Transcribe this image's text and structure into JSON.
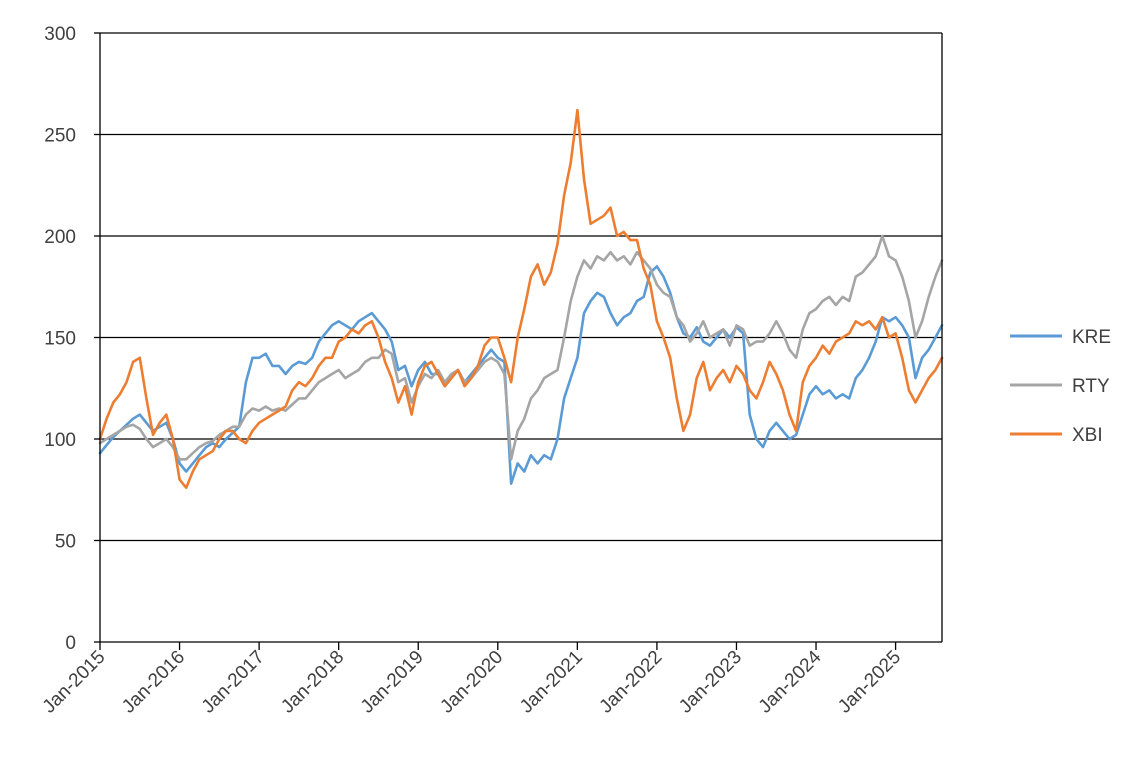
{
  "chart_data": {
    "type": "line",
    "title": "",
    "xlabel": "",
    "ylabel": "",
    "ylim": [
      0,
      300
    ],
    "yticks": [
      0,
      50,
      100,
      150,
      200,
      250,
      300
    ],
    "xlim": [
      "2015-01",
      "2025-08"
    ],
    "xtick_labels": [
      "Jan-2015",
      "Jan-2016",
      "Jan-2017",
      "Jan-2018",
      "Jan-2019",
      "Jan-2020",
      "Jan-2021",
      "Jan-2022",
      "Jan-2023",
      "Jan-2024",
      "Jan-2025"
    ],
    "grid": "horizontal",
    "legend_position": "right",
    "dates": [
      "2015-01",
      "2015-02",
      "2015-03",
      "2015-04",
      "2015-05",
      "2015-06",
      "2015-07",
      "2015-08",
      "2015-09",
      "2015-10",
      "2015-11",
      "2015-12",
      "2016-01",
      "2016-02",
      "2016-03",
      "2016-04",
      "2016-05",
      "2016-06",
      "2016-07",
      "2016-08",
      "2016-09",
      "2016-10",
      "2016-11",
      "2016-12",
      "2017-01",
      "2017-02",
      "2017-03",
      "2017-04",
      "2017-05",
      "2017-06",
      "2017-07",
      "2017-08",
      "2017-09",
      "2017-10",
      "2017-11",
      "2017-12",
      "2018-01",
      "2018-02",
      "2018-03",
      "2018-04",
      "2018-05",
      "2018-06",
      "2018-07",
      "2018-08",
      "2018-09",
      "2018-10",
      "2018-11",
      "2018-12",
      "2019-01",
      "2019-02",
      "2019-03",
      "2019-04",
      "2019-05",
      "2019-06",
      "2019-07",
      "2019-08",
      "2019-09",
      "2019-10",
      "2019-11",
      "2019-12",
      "2020-01",
      "2020-02",
      "2020-03",
      "2020-04",
      "2020-05",
      "2020-06",
      "2020-07",
      "2020-08",
      "2020-09",
      "2020-10",
      "2020-11",
      "2020-12",
      "2021-01",
      "2021-02",
      "2021-03",
      "2021-04",
      "2021-05",
      "2021-06",
      "2021-07",
      "2021-08",
      "2021-09",
      "2021-10",
      "2021-11",
      "2021-12",
      "2022-01",
      "2022-02",
      "2022-03",
      "2022-04",
      "2022-05",
      "2022-06",
      "2022-07",
      "2022-08",
      "2022-09",
      "2022-10",
      "2022-11",
      "2022-12",
      "2023-01",
      "2023-02",
      "2023-03",
      "2023-04",
      "2023-05",
      "2023-06",
      "2023-07",
      "2023-08",
      "2023-09",
      "2023-10",
      "2023-11",
      "2023-12",
      "2024-01",
      "2024-02",
      "2024-03",
      "2024-04",
      "2024-05",
      "2024-06",
      "2024-07",
      "2024-08",
      "2024-09",
      "2024-10",
      "2024-11",
      "2024-12",
      "2025-01",
      "2025-02",
      "2025-03",
      "2025-04",
      "2025-05",
      "2025-06",
      "2025-07",
      "2025-08"
    ],
    "series": [
      {
        "name": "KRE",
        "color": "#5B9BD5",
        "values": [
          93,
          97,
          101,
          104,
          107,
          110,
          112,
          108,
          104,
          106,
          108,
          100,
          88,
          84,
          88,
          92,
          96,
          98,
          96,
          100,
          103,
          106,
          128,
          140,
          140,
          142,
          136,
          136,
          132,
          136,
          138,
          137,
          140,
          148,
          152,
          156,
          158,
          156,
          154,
          158,
          160,
          162,
          158,
          154,
          148,
          134,
          136,
          126,
          134,
          138,
          132,
          132,
          126,
          130,
          134,
          128,
          132,
          136,
          140,
          144,
          140,
          138,
          78,
          88,
          84,
          92,
          88,
          92,
          90,
          100,
          120,
          130,
          140,
          162,
          168,
          172,
          170,
          162,
          156,
          160,
          162,
          168,
          170,
          182,
          185,
          180,
          172,
          160,
          152,
          150,
          155,
          148,
          146,
          150,
          154,
          150,
          155,
          152,
          112,
          100,
          96,
          104,
          108,
          104,
          100,
          102,
          112,
          122,
          126,
          122,
          124,
          120,
          122,
          120,
          130,
          134,
          140,
          148,
          160,
          158,
          160,
          156,
          150,
          130,
          140,
          144,
          150,
          156
        ]
      },
      {
        "name": "RTY",
        "color": "#A5A5A5",
        "values": [
          98,
          100,
          102,
          104,
          106,
          107,
          105,
          100,
          96,
          98,
          100,
          96,
          90,
          90,
          93,
          96,
          98,
          99,
          102,
          104,
          106,
          106,
          112,
          115,
          114,
          116,
          114,
          115,
          114,
          117,
          120,
          120,
          124,
          128,
          130,
          132,
          134,
          130,
          132,
          134,
          138,
          140,
          140,
          144,
          142,
          128,
          130,
          118,
          126,
          132,
          130,
          134,
          128,
          132,
          134,
          128,
          130,
          134,
          138,
          140,
          138,
          132,
          90,
          104,
          110,
          120,
          124,
          130,
          132,
          134,
          150,
          168,
          180,
          188,
          184,
          190,
          188,
          192,
          188,
          190,
          186,
          192,
          188,
          184,
          176,
          172,
          170,
          160,
          156,
          148,
          152,
          158,
          150,
          152,
          154,
          146,
          156,
          154,
          146,
          148,
          148,
          152,
          158,
          152,
          144,
          140,
          154,
          162,
          164,
          168,
          170,
          166,
          170,
          168,
          180,
          182,
          186,
          190,
          200,
          190,
          188,
          180,
          168,
          150,
          158,
          170,
          180,
          188
        ]
      },
      {
        "name": "XBI",
        "color": "#ED7D31",
        "values": [
          100,
          110,
          118,
          122,
          128,
          138,
          140,
          120,
          102,
          108,
          112,
          100,
          80,
          76,
          84,
          90,
          92,
          94,
          100,
          104,
          104,
          100,
          98,
          104,
          108,
          110,
          112,
          114,
          116,
          124,
          128,
          126,
          130,
          136,
          140,
          140,
          148,
          150,
          154,
          152,
          156,
          158,
          150,
          138,
          130,
          118,
          126,
          112,
          128,
          136,
          138,
          132,
          126,
          130,
          134,
          126,
          130,
          136,
          146,
          150,
          150,
          140,
          128,
          150,
          164,
          180,
          186,
          176,
          182,
          196,
          220,
          236,
          262,
          228,
          206,
          208,
          210,
          214,
          200,
          202,
          198,
          198,
          184,
          176,
          158,
          150,
          140,
          120,
          104,
          112,
          130,
          138,
          124,
          130,
          134,
          128,
          136,
          132,
          124,
          120,
          128,
          138,
          132,
          124,
          112,
          104,
          128,
          136,
          140,
          146,
          142,
          148,
          150,
          152,
          158,
          156,
          158,
          154,
          160,
          150,
          152,
          140,
          124,
          118,
          124,
          130,
          134,
          140
        ]
      }
    ]
  }
}
